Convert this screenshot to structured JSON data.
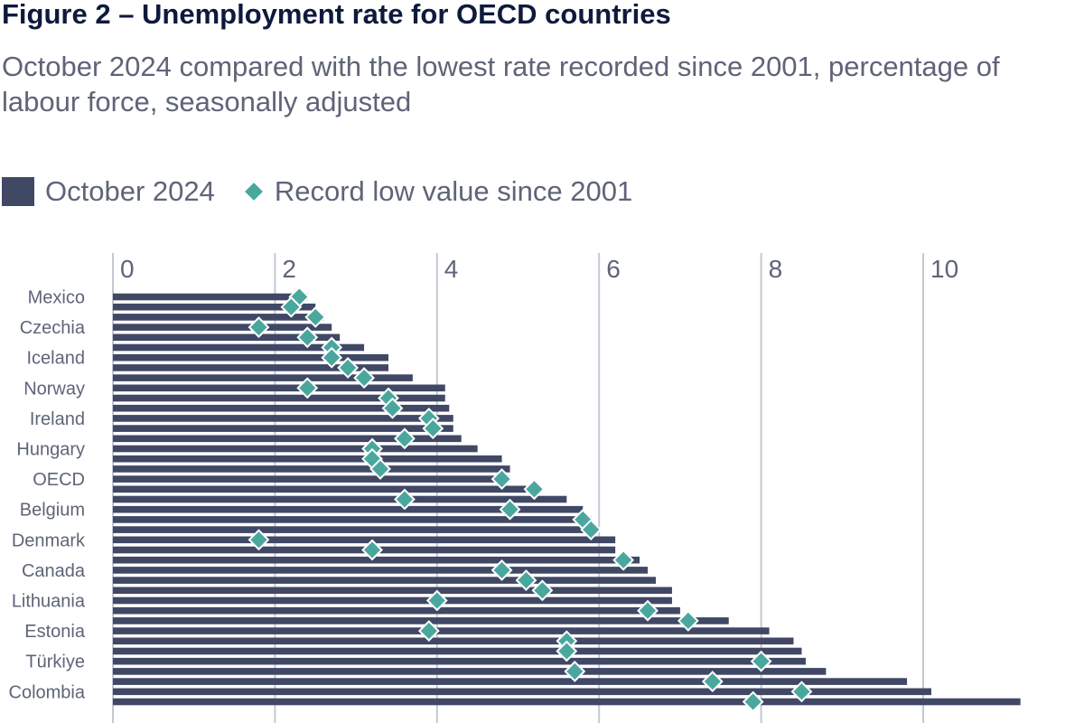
{
  "title": "Figure 2 – Unemployment rate for OECD countries",
  "subtitle": "October 2024 compared with the lowest rate recorded since 2001, percentage of labour force, seasonally adjusted",
  "legend": {
    "bars_label": "October 2024",
    "markers_label": "Record low value since 2001"
  },
  "colors": {
    "bar": "#414865",
    "marker": "#4aa79e",
    "grid": "#c3c9d3",
    "text": "#5e6478"
  },
  "chart_data": {
    "type": "bar",
    "orientation": "horizontal",
    "xlim": [
      0,
      11.1
    ],
    "ticks": [
      "0",
      "2",
      "4",
      "6",
      "8",
      "10"
    ],
    "tick_values": [
      0,
      2,
      4,
      6,
      8,
      10
    ],
    "grid": true,
    "legend_position": "top-left",
    "categories": [
      "Mexico",
      "",
      "",
      "Czechia",
      "",
      "",
      "Iceland",
      "",
      "",
      "Norway",
      "",
      "",
      "Ireland",
      "",
      "",
      "Hungary",
      "",
      "",
      "OECD",
      "",
      "",
      "Belgium",
      "",
      "",
      "Denmark",
      "",
      "",
      "Canada",
      "",
      "",
      "Lithuania",
      "",
      "",
      "Estonia",
      "",
      "",
      "Türkiye",
      "",
      "",
      "Colombia",
      ""
    ],
    "series": [
      {
        "name": "October 2024",
        "values": [
          2.4,
          2.5,
          2.6,
          2.7,
          2.8,
          3.1,
          3.4,
          3.4,
          3.7,
          4.1,
          4.1,
          4.15,
          4.2,
          4.2,
          4.3,
          4.5,
          4.8,
          4.9,
          4.9,
          5.1,
          5.6,
          5.8,
          5.9,
          5.9,
          6.2,
          6.2,
          6.5,
          6.6,
          6.7,
          6.9,
          6.9,
          7.0,
          7.6,
          8.1,
          8.4,
          8.5,
          8.55,
          8.8,
          9.8,
          10.1,
          11.2
        ]
      },
      {
        "name": "Record low value since 2001",
        "values": [
          2.3,
          2.2,
          2.5,
          1.8,
          2.4,
          2.7,
          2.7,
          2.9,
          3.1,
          2.4,
          3.4,
          3.45,
          3.9,
          3.95,
          3.6,
          3.2,
          3.2,
          3.3,
          4.8,
          5.2,
          3.6,
          4.9,
          5.8,
          5.9,
          1.8,
          3.2,
          6.3,
          4.8,
          5.1,
          5.3,
          4.0,
          6.6,
          7.1,
          3.9,
          5.6,
          5.6,
          8.0,
          5.7,
          7.4,
          8.5,
          7.9
        ]
      }
    ]
  }
}
